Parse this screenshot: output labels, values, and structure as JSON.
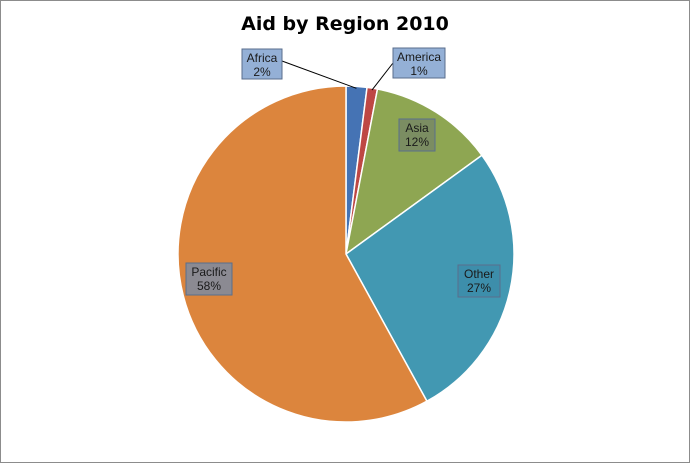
{
  "chart_data": {
    "type": "pie",
    "title": "Aid by Region 2010",
    "categories": [
      "Africa",
      "America",
      "Asia",
      "Other",
      "Pacific"
    ],
    "values": [
      2,
      1,
      12,
      27,
      58
    ],
    "percent_labels": [
      "2%",
      "1%",
      "12%",
      "27%",
      "58%"
    ],
    "colors": [
      "#4573b4",
      "#be4744",
      "#8ea652",
      "#4298b2",
      "#dc853d"
    ],
    "label_fills": [
      "#94b0d6",
      "#94b0d6",
      "#7b8d62",
      "#3d8eab",
      "#8b8a92"
    ],
    "start_angle_deg": 0,
    "direction": "clockwise",
    "legend": "none",
    "data_labels": "category-and-percent"
  }
}
